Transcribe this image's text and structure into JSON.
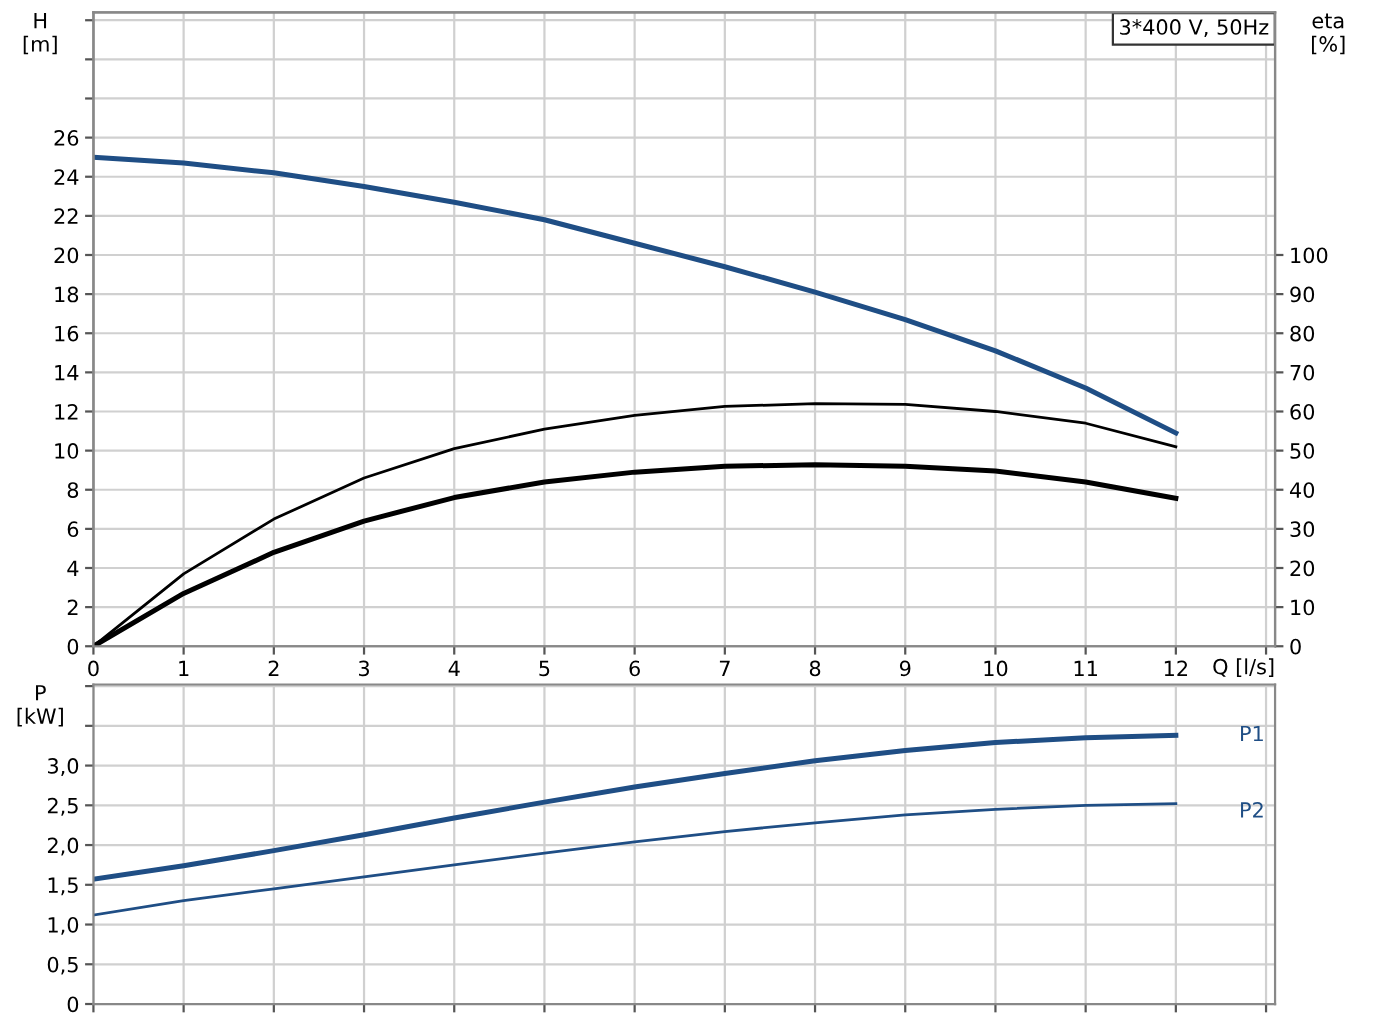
{
  "chart_data": [
    {
      "type": "line",
      "xlabel": "Q [l/s]",
      "ylabel": "H\n[m]",
      "y2label": "eta\n[%]",
      "annotations": [
        "3*400 V, 50Hz"
      ],
      "xlim": [
        0,
        13.1
      ],
      "xticks": [
        0,
        1,
        2,
        3,
        4,
        5,
        6,
        7,
        8,
        9,
        10,
        11,
        12,
        {
          "value": 13,
          "label": null
        }
      ],
      "ylim": [
        0,
        32.4
      ],
      "yticks": [
        0,
        2,
        4,
        6,
        8,
        10,
        12,
        14,
        16,
        18,
        20,
        22,
        24,
        26,
        {
          "value": 28,
          "label": null
        },
        {
          "value": 30,
          "label": null
        },
        {
          "value": 32,
          "label": null
        }
      ],
      "y2lim": [
        0,
        162
      ],
      "y2ticks": [
        0,
        10,
        20,
        30,
        40,
        50,
        60,
        70,
        80,
        90,
        100
      ],
      "grid": true,
      "legend": false,
      "x": [
        0,
        1,
        2,
        3,
        4,
        5,
        6,
        7,
        8,
        9,
        10,
        11,
        12
      ],
      "series": [
        {
          "color": "#1f4e85",
          "values": [
            25.0,
            24.7,
            24.2,
            23.5,
            22.7,
            21.8,
            20.6,
            19.4,
            18.1,
            16.7,
            15.1,
            13.2,
            10.9
          ]
        },
        {
          "color": "#000000",
          "axis": "y2",
          "values": [
            0,
            18.5,
            32.5,
            43,
            50.5,
            55.5,
            59,
            61.3,
            62,
            61.8,
            60,
            57,
            51
          ]
        },
        {
          "color": "#000000",
          "axis": "y2",
          "values": [
            0,
            13.5,
            24,
            32,
            38,
            42,
            44.5,
            46,
            46.4,
            46,
            44.8,
            42,
            37.8
          ]
        }
      ]
    },
    {
      "type": "line",
      "ylabel": "P\n[kW]",
      "tick_labels": "y",
      "xlim": [
        0,
        13.1
      ],
      "ylim": [
        0,
        4.02
      ],
      "yticks": [
        0,
        {
          "value": 0.5,
          "label": "0,5"
        },
        {
          "value": 1.0,
          "label": "1,0"
        },
        {
          "value": 1.5,
          "label": "1,5"
        },
        {
          "value": 2.0,
          "label": "2,0"
        },
        {
          "value": 2.5,
          "label": "2,5"
        },
        {
          "value": 3.0,
          "label": "3,0"
        },
        {
          "value": 3.5,
          "label": null
        },
        {
          "value": 4.0,
          "label": null
        }
      ],
      "grid": true,
      "legend": false,
      "x": [
        0,
        1,
        2,
        3,
        4,
        5,
        6,
        7,
        8,
        9,
        10,
        11,
        12
      ],
      "series": [
        {
          "name": "P1",
          "color": "#1f4e85",
          "values": [
            1.57,
            1.74,
            1.93,
            2.13,
            2.34,
            2.54,
            2.73,
            2.9,
            3.06,
            3.19,
            3.29,
            3.35,
            3.38
          ]
        },
        {
          "name": "P2",
          "color": "#1f4e85",
          "values": [
            1.12,
            1.3,
            1.45,
            1.6,
            1.75,
            1.9,
            2.04,
            2.17,
            2.28,
            2.38,
            2.45,
            2.5,
            2.52
          ]
        }
      ]
    }
  ]
}
